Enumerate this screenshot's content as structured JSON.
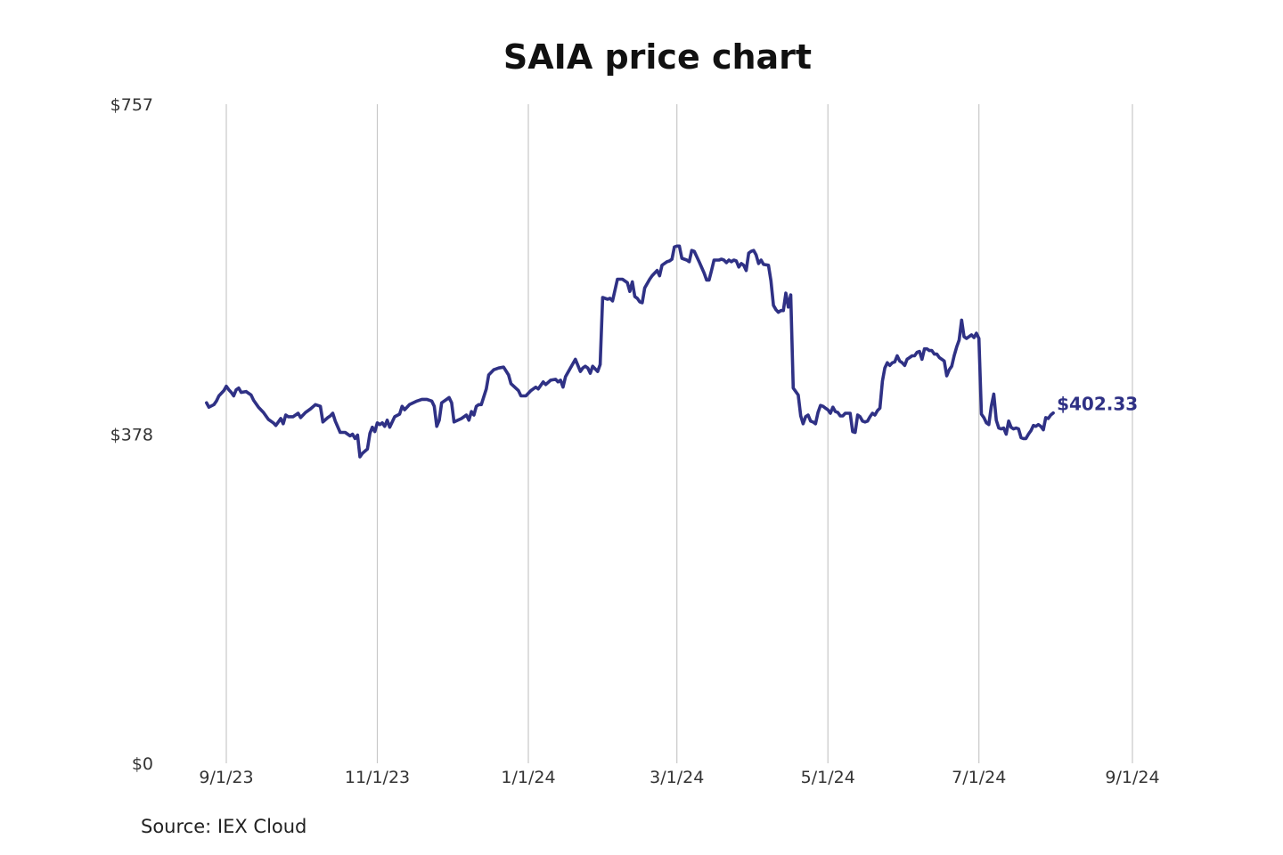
{
  "chart_data": {
    "type": "line",
    "title": "SAIA price chart",
    "xlabel": "",
    "ylabel": "",
    "ylim": [
      0,
      757
    ],
    "y_ticks": [
      {
        "value": 757,
        "label": "$757"
      },
      {
        "value": 378,
        "label": "$378"
      },
      {
        "value": 0,
        "label": "$0"
      }
    ],
    "x_ticks": [
      {
        "day": 0,
        "label": "9/1/23"
      },
      {
        "day": 61,
        "label": "11/1/23"
      },
      {
        "day": 122,
        "label": "1/1/24"
      },
      {
        "day": 182,
        "label": "3/1/24"
      },
      {
        "day": 243,
        "label": "5/1/24"
      },
      {
        "day": 304,
        "label": "7/1/24"
      },
      {
        "day": 366,
        "label": "9/1/24"
      }
    ],
    "x_unit": "days since 9/1/23",
    "grid": {
      "vertical": true,
      "horizontal": false
    },
    "series": [
      {
        "name": "SAIA",
        "color": "#2f3185",
        "last_value_label": "$402.33",
        "points": [
          [
            -8,
            414
          ],
          [
            -7,
            409
          ],
          [
            -5,
            412
          ],
          [
            -4,
            416
          ],
          [
            -3,
            422
          ],
          [
            -1,
            428
          ],
          [
            0,
            433
          ],
          [
            1,
            429
          ],
          [
            2,
            426
          ],
          [
            3,
            422
          ],
          [
            4,
            429
          ],
          [
            5,
            431
          ],
          [
            6,
            426
          ],
          [
            8,
            427
          ],
          [
            10,
            423
          ],
          [
            11,
            417
          ],
          [
            13,
            409
          ],
          [
            15,
            403
          ],
          [
            17,
            395
          ],
          [
            19,
            391
          ],
          [
            20,
            388
          ],
          [
            21,
            392
          ],
          [
            22,
            396
          ],
          [
            23,
            390
          ],
          [
            24,
            400
          ],
          [
            25,
            398
          ],
          [
            27,
            398
          ],
          [
            29,
            402
          ],
          [
            30,
            397
          ],
          [
            32,
            403
          ],
          [
            34,
            407
          ],
          [
            36,
            412
          ],
          [
            38,
            410
          ],
          [
            39,
            392
          ],
          [
            41,
            397
          ],
          [
            42,
            399
          ],
          [
            43,
            402
          ],
          [
            44,
            393
          ],
          [
            46,
            380
          ],
          [
            48,
            380
          ],
          [
            50,
            376
          ],
          [
            51,
            378
          ],
          [
            52,
            373
          ],
          [
            53,
            377
          ],
          [
            54,
            352
          ],
          [
            55,
            356
          ],
          [
            57,
            361
          ],
          [
            58,
            379
          ],
          [
            59,
            386
          ],
          [
            60,
            381
          ],
          [
            61,
            391
          ],
          [
            62,
            389
          ],
          [
            63,
            391
          ],
          [
            64,
            387
          ],
          [
            65,
            394
          ],
          [
            66,
            386
          ],
          [
            68,
            398
          ],
          [
            70,
            401
          ],
          [
            71,
            410
          ],
          [
            72,
            406
          ],
          [
            74,
            412
          ],
          [
            77,
            416
          ],
          [
            79,
            418
          ],
          [
            81,
            418
          ],
          [
            83,
            416
          ],
          [
            84,
            410
          ],
          [
            85,
            387
          ],
          [
            86,
            394
          ],
          [
            87,
            414
          ],
          [
            89,
            418
          ],
          [
            90,
            420
          ],
          [
            91,
            414
          ],
          [
            92,
            392
          ],
          [
            95,
            396
          ],
          [
            97,
            400
          ],
          [
            98,
            394
          ],
          [
            99,
            404
          ],
          [
            100,
            400
          ],
          [
            101,
            410
          ],
          [
            102,
            412
          ],
          [
            103,
            412
          ],
          [
            105,
            430
          ],
          [
            106,
            446
          ],
          [
            108,
            452
          ],
          [
            110,
            454
          ],
          [
            112,
            455
          ],
          [
            114,
            446
          ],
          [
            115,
            436
          ],
          [
            118,
            428
          ],
          [
            119,
            422
          ],
          [
            121,
            422
          ],
          [
            123,
            428
          ],
          [
            125,
            432
          ],
          [
            126,
            430
          ],
          [
            128,
            438
          ],
          [
            129,
            435
          ],
          [
            131,
            440
          ],
          [
            133,
            441
          ],
          [
            134,
            438
          ],
          [
            135,
            440
          ],
          [
            136,
            432
          ],
          [
            137,
            444
          ],
          [
            139,
            454
          ],
          [
            141,
            464
          ],
          [
            143,
            450
          ],
          [
            144,
            454
          ],
          [
            145,
            456
          ],
          [
            146,
            454
          ],
          [
            147,
            448
          ],
          [
            148,
            456
          ],
          [
            150,
            450
          ],
          [
            151,
            458
          ],
          [
            152,
            535
          ],
          [
            154,
            533
          ],
          [
            155,
            534
          ],
          [
            156,
            531
          ],
          [
            158,
            556
          ],
          [
            160,
            556
          ],
          [
            162,
            552
          ],
          [
            163,
            542
          ],
          [
            164,
            553
          ],
          [
            165,
            536
          ],
          [
            166,
            534
          ],
          [
            167,
            530
          ],
          [
            168,
            529
          ],
          [
            169,
            546
          ],
          [
            171,
            556
          ],
          [
            172,
            560
          ],
          [
            174,
            566
          ],
          [
            175,
            560
          ],
          [
            176,
            572
          ],
          [
            178,
            576
          ],
          [
            179,
            577
          ],
          [
            180,
            579
          ],
          [
            181,
            593
          ],
          [
            182,
            594
          ],
          [
            183,
            594
          ],
          [
            184,
            580
          ],
          [
            186,
            578
          ],
          [
            187,
            576
          ],
          [
            188,
            589
          ],
          [
            189,
            588
          ],
          [
            190,
            582
          ],
          [
            191,
            576
          ],
          [
            193,
            563
          ],
          [
            194,
            555
          ],
          [
            195,
            555
          ],
          [
            196,
            566
          ],
          [
            197,
            578
          ],
          [
            199,
            578
          ],
          [
            200,
            579
          ],
          [
            201,
            578
          ],
          [
            202,
            575
          ],
          [
            203,
            578
          ],
          [
            204,
            576
          ],
          [
            205,
            578
          ],
          [
            206,
            577
          ],
          [
            207,
            570
          ],
          [
            208,
            574
          ],
          [
            209,
            572
          ],
          [
            210,
            566
          ],
          [
            211,
            586
          ],
          [
            212,
            588
          ],
          [
            213,
            589
          ],
          [
            214,
            584
          ],
          [
            215,
            574
          ],
          [
            216,
            578
          ],
          [
            217,
            573
          ],
          [
            219,
            572
          ],
          [
            220,
            554
          ],
          [
            221,
            526
          ],
          [
            222,
            521
          ],
          [
            223,
            518
          ],
          [
            224,
            520
          ],
          [
            225,
            520
          ],
          [
            226,
            540
          ],
          [
            227,
            524
          ],
          [
            228,
            538
          ],
          [
            229,
            431
          ],
          [
            231,
            423
          ],
          [
            232,
            399
          ],
          [
            233,
            390
          ],
          [
            234,
            398
          ],
          [
            235,
            400
          ],
          [
            236,
            393
          ],
          [
            237,
            392
          ],
          [
            238,
            390
          ],
          [
            239,
            403
          ],
          [
            240,
            411
          ],
          [
            241,
            410
          ],
          [
            242,
            408
          ],
          [
            243,
            406
          ],
          [
            244,
            402
          ],
          [
            245,
            409
          ],
          [
            246,
            404
          ],
          [
            247,
            403
          ],
          [
            248,
            399
          ],
          [
            249,
            399
          ],
          [
            250,
            402
          ],
          [
            252,
            402
          ],
          [
            253,
            381
          ],
          [
            254,
            380
          ],
          [
            255,
            400
          ],
          [
            256,
            398
          ],
          [
            257,
            393
          ],
          [
            258,
            392
          ],
          [
            259,
            393
          ],
          [
            260,
            398
          ],
          [
            261,
            402
          ],
          [
            262,
            400
          ],
          [
            263,
            405
          ],
          [
            264,
            408
          ],
          [
            265,
            439
          ],
          [
            266,
            454
          ],
          [
            267,
            460
          ],
          [
            268,
            457
          ],
          [
            269,
            460
          ],
          [
            270,
            461
          ],
          [
            271,
            468
          ],
          [
            272,
            462
          ],
          [
            273,
            460
          ],
          [
            274,
            457
          ],
          [
            275,
            464
          ],
          [
            276,
            466
          ],
          [
            277,
            468
          ],
          [
            278,
            468
          ],
          [
            279,
            472
          ],
          [
            280,
            473
          ],
          [
            281,
            464
          ],
          [
            282,
            476
          ],
          [
            283,
            476
          ],
          [
            284,
            474
          ],
          [
            285,
            474
          ],
          [
            286,
            470
          ],
          [
            287,
            470
          ],
          [
            288,
            466
          ],
          [
            289,
            464
          ],
          [
            290,
            462
          ],
          [
            291,
            445
          ],
          [
            292,
            452
          ],
          [
            293,
            456
          ],
          [
            294,
            468
          ],
          [
            295,
            478
          ],
          [
            296,
            486
          ],
          [
            297,
            509
          ],
          [
            298,
            490
          ],
          [
            299,
            488
          ],
          [
            300,
            490
          ],
          [
            301,
            492
          ],
          [
            302,
            489
          ],
          [
            303,
            494
          ],
          [
            304,
            488
          ],
          [
            305,
            401
          ],
          [
            306,
            397
          ],
          [
            307,
            391
          ],
          [
            308,
            389
          ],
          [
            309,
            410
          ],
          [
            310,
            424
          ],
          [
            311,
            394
          ],
          [
            312,
            385
          ],
          [
            313,
            384
          ],
          [
            314,
            385
          ],
          [
            315,
            378
          ],
          [
            316,
            393
          ],
          [
            317,
            386
          ],
          [
            318,
            384
          ],
          [
            319,
            385
          ],
          [
            320,
            384
          ],
          [
            321,
            374
          ],
          [
            322,
            373
          ],
          [
            323,
            373
          ],
          [
            324,
            378
          ],
          [
            325,
            382
          ],
          [
            326,
            388
          ],
          [
            327,
            387
          ],
          [
            328,
            389
          ],
          [
            329,
            387
          ],
          [
            330,
            383
          ],
          [
            331,
            397
          ],
          [
            332,
            396
          ],
          [
            333,
            400
          ],
          [
            334,
            402.33
          ]
        ]
      }
    ]
  },
  "source": "Source: IEX Cloud"
}
